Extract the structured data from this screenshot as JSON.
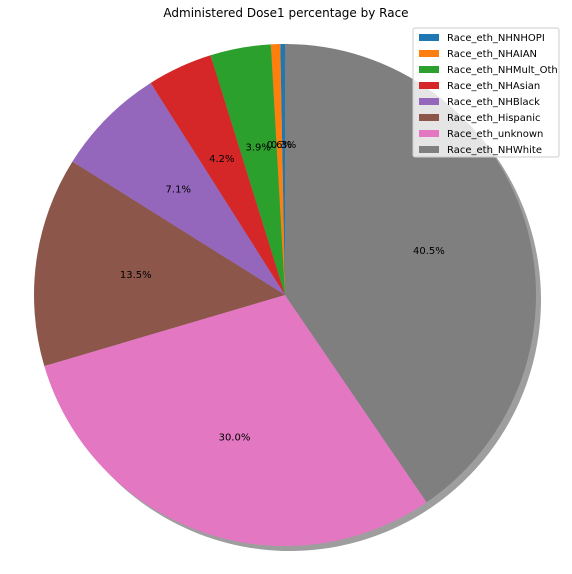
{
  "chart_data": {
    "type": "pie",
    "title": "Administered Dose1 percentage by Race",
    "start_angle_deg": 90,
    "direction": "counterclockwise",
    "shadow": true,
    "legend_position": "top-right",
    "slices": [
      {
        "label": "Race_eth_NHNHOPI",
        "value": 0.3,
        "pct_label": "0.3%",
        "color": "#1f77b4"
      },
      {
        "label": "Race_eth_NHAIAN",
        "value": 0.6,
        "pct_label": "0.6%",
        "color": "#ff7f0e"
      },
      {
        "label": "Race_eth_NHMult_Oth",
        "value": 3.9,
        "pct_label": "3.9%",
        "color": "#2ca02c"
      },
      {
        "label": "Race_eth_NHAsian",
        "value": 4.2,
        "pct_label": "4.2%",
        "color": "#d62728"
      },
      {
        "label": "Race_eth_NHBlack",
        "value": 7.1,
        "pct_label": "7.1%",
        "color": "#9467bd"
      },
      {
        "label": "Race_eth_Hispanic",
        "value": 13.5,
        "pct_label": "13.5%",
        "color": "#8c564b"
      },
      {
        "label": "Race_eth_unknown",
        "value": 30.0,
        "pct_label": "30.0%",
        "color": "#e377c2"
      },
      {
        "label": "Race_eth_NHWhite",
        "value": 40.5,
        "pct_label": "40.5%",
        "color": "#7f7f7f"
      }
    ]
  }
}
